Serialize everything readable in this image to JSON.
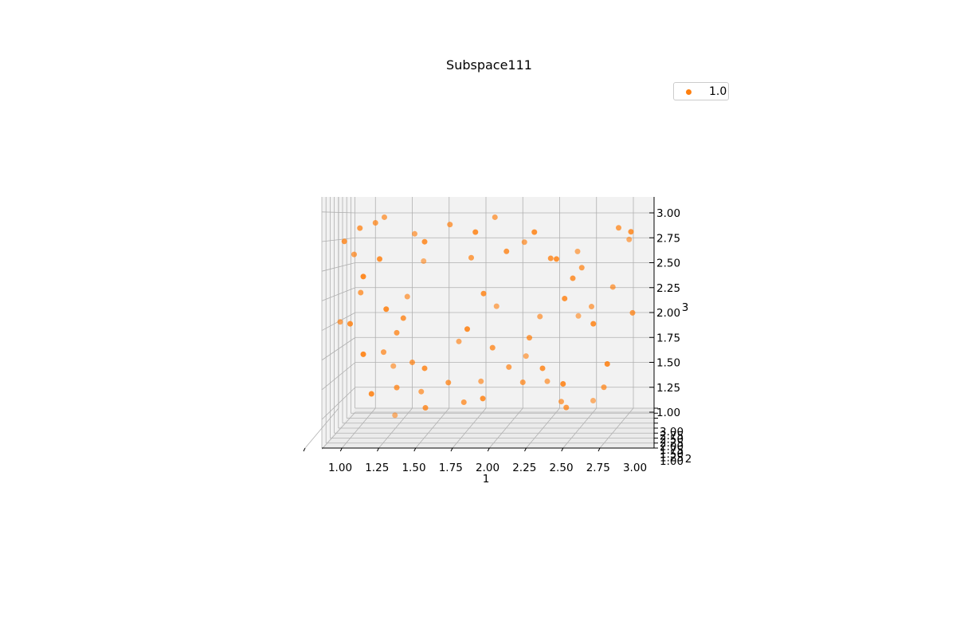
{
  "chart_data": {
    "type": "scatter",
    "projection": "3d",
    "title": "Subspace111",
    "xlabel": "1",
    "ylabel": "2",
    "zlabel": "3",
    "xlim": [
      1.0,
      3.0
    ],
    "ylim": [
      1.0,
      3.0
    ],
    "zlim": [
      1.0,
      3.0
    ],
    "x_ticks": [
      "1.00",
      "1.25",
      "1.50",
      "1.75",
      "2.00",
      "2.25",
      "2.50",
      "2.75",
      "3.00"
    ],
    "y_ticks": [
      "1.00",
      "1.25",
      "1.50",
      "1.75",
      "2.00",
      "2.25",
      "2.50",
      "2.75",
      "3.00"
    ],
    "z_ticks": [
      "1.00",
      "1.25",
      "1.50",
      "1.75",
      "2.00",
      "2.25",
      "2.50",
      "2.75",
      "3.00"
    ],
    "grid": true,
    "legend_position": "top-right",
    "color": "#ff7f0e",
    "series": [
      {
        "name": "1.0",
        "points": [
          [
            1.3,
            2.2,
            2.95
          ],
          [
            1.25,
            2.0,
            2.9
          ],
          [
            1.15,
            1.9,
            2.85
          ],
          [
            1.5,
            2.3,
            2.78
          ],
          [
            1.6,
            1.7,
            2.72
          ],
          [
            1.05,
            1.8,
            2.72
          ],
          [
            1.1,
            2.1,
            2.58
          ],
          [
            1.3,
            1.6,
            2.55
          ],
          [
            1.55,
            2.5,
            2.5
          ],
          [
            1.2,
            1.4,
            2.38
          ],
          [
            1.15,
            2.0,
            2.2
          ],
          [
            1.35,
            1.5,
            2.05
          ],
          [
            1.45,
            2.3,
            2.15
          ],
          [
            1.45,
            1.8,
            1.95
          ],
          [
            1.0,
            2.2,
            1.9
          ],
          [
            1.1,
            1.6,
            1.9
          ],
          [
            1.4,
            1.9,
            1.8
          ],
          [
            1.3,
            2.1,
            1.6
          ],
          [
            1.2,
            1.4,
            1.6
          ],
          [
            1.5,
            2.0,
            1.5
          ],
          [
            1.35,
            2.4,
            1.45
          ],
          [
            1.6,
            1.7,
            1.45
          ],
          [
            1.4,
            1.9,
            1.25
          ],
          [
            1.25,
            1.5,
            1.2
          ],
          [
            1.55,
            2.2,
            1.2
          ],
          [
            1.6,
            1.8,
            1.05
          ],
          [
            1.35,
            2.6,
            0.95
          ],
          [
            1.75,
            2.1,
            2.88
          ],
          [
            1.75,
            1.9,
            1.3
          ],
          [
            1.8,
            2.3,
            1.7
          ],
          [
            1.95,
            1.6,
            2.82
          ],
          [
            2.05,
            2.2,
            2.95
          ],
          [
            1.9,
            2.0,
            2.55
          ],
          [
            2.0,
            1.7,
            2.2
          ],
          [
            2.05,
            2.4,
            2.05
          ],
          [
            1.9,
            1.5,
            1.85
          ],
          [
            2.05,
            1.9,
            1.65
          ],
          [
            2.15,
            2.1,
            1.45
          ],
          [
            1.95,
            2.3,
            1.3
          ],
          [
            2.0,
            1.6,
            1.15
          ],
          [
            1.85,
            2.0,
            1.1
          ],
          [
            2.15,
            1.8,
            2.62
          ],
          [
            2.25,
            2.2,
            2.7
          ],
          [
            2.35,
            1.6,
            2.82
          ],
          [
            2.45,
            1.8,
            2.55
          ],
          [
            2.35,
            2.3,
            1.95
          ],
          [
            2.3,
            1.9,
            1.75
          ],
          [
            2.25,
            2.4,
            1.55
          ],
          [
            2.4,
            1.7,
            1.45
          ],
          [
            2.25,
            2.0,
            1.3
          ],
          [
            2.5,
            2.2,
            1.1
          ],
          [
            2.55,
            1.9,
            1.05
          ],
          [
            2.6,
            2.4,
            2.6
          ],
          [
            2.5,
            1.6,
            2.55
          ],
          [
            2.65,
            2.0,
            2.45
          ],
          [
            2.55,
            1.7,
            2.15
          ],
          [
            2.7,
            2.3,
            2.05
          ],
          [
            2.55,
            1.5,
            1.3
          ],
          [
            2.6,
            2.5,
            1.95
          ],
          [
            2.75,
            1.6,
            1.9
          ],
          [
            2.9,
            2.0,
            2.85
          ],
          [
            3.0,
            1.7,
            2.82
          ],
          [
            2.95,
            2.4,
            2.72
          ],
          [
            2.85,
            2.2,
            2.25
          ],
          [
            3.0,
            1.9,
            2.0
          ],
          [
            2.85,
            1.5,
            1.5
          ],
          [
            2.8,
            2.0,
            1.25
          ],
          [
            2.7,
            2.5,
            1.1
          ],
          [
            2.4,
            2.3,
            1.3
          ],
          [
            2.6,
            1.8,
            2.35
          ]
        ]
      }
    ]
  },
  "legend": {
    "label": "1.0"
  }
}
